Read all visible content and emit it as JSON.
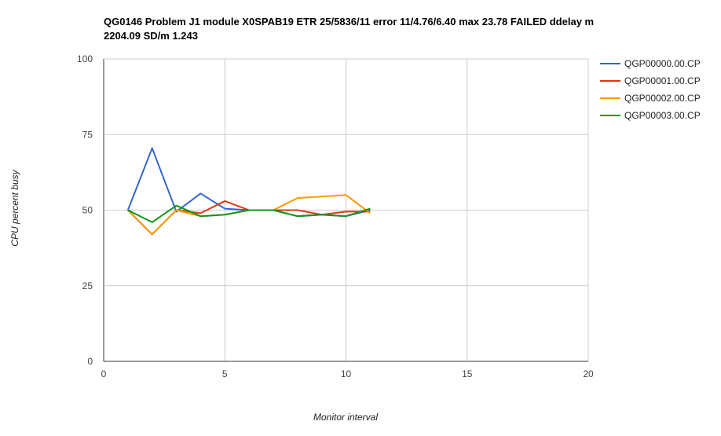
{
  "chart_data": {
    "type": "line",
    "title": "QG0146 Problem J1 module X0SPAB19 ETR 25/5836/11 error 11/4.76/6.40 max 23.78 FAILED ddelay m 2204.09 SD/m 1.243",
    "xlabel": "Monitor interval",
    "ylabel": "CPU percent busy",
    "xlim": [
      0,
      20
    ],
    "ylim": [
      0,
      100
    ],
    "xticks": [
      0,
      5,
      10,
      15,
      20
    ],
    "yticks": [
      0,
      25,
      50,
      75,
      100
    ],
    "grid": true,
    "legend_position": "right",
    "x": [
      1,
      2,
      3,
      4,
      5,
      6,
      7,
      8,
      9,
      10,
      11
    ],
    "series": [
      {
        "name": "QGP00000.00.CP",
        "color": "#3366cc",
        "values": [
          50,
          70.5,
          49.5,
          55.5,
          50.5,
          50,
          50,
          48,
          48.5,
          48,
          50
        ]
      },
      {
        "name": "QGP00001.00.CP",
        "color": "#dc3912",
        "values": [
          50,
          42,
          50,
          49,
          53,
          50,
          50,
          50,
          48.5,
          49.5,
          49.5
        ]
      },
      {
        "name": "QGP00002.00.CP",
        "color": "#ff9900",
        "values": [
          50,
          42,
          50,
          48,
          48.5,
          50,
          50,
          54,
          54.5,
          55,
          49
        ]
      },
      {
        "name": "QGP00003.00.CP",
        "color": "#109618",
        "values": [
          50,
          46,
          51.5,
          48,
          48.5,
          50,
          50,
          48,
          48.5,
          48,
          50.5
        ]
      }
    ]
  }
}
